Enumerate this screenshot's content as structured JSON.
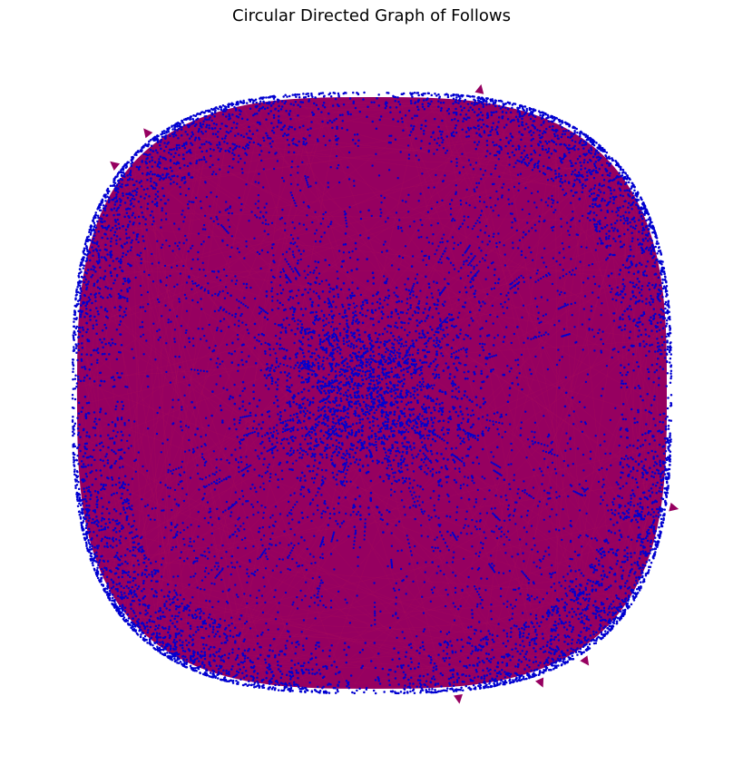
{
  "figure": {
    "title": "Circular Directed Graph of Follows"
  },
  "graph": {
    "layout": "circular",
    "directed": true,
    "colors": {
      "edge": "#960060",
      "node": "#0000d0",
      "background": "#ffffff"
    }
  }
}
